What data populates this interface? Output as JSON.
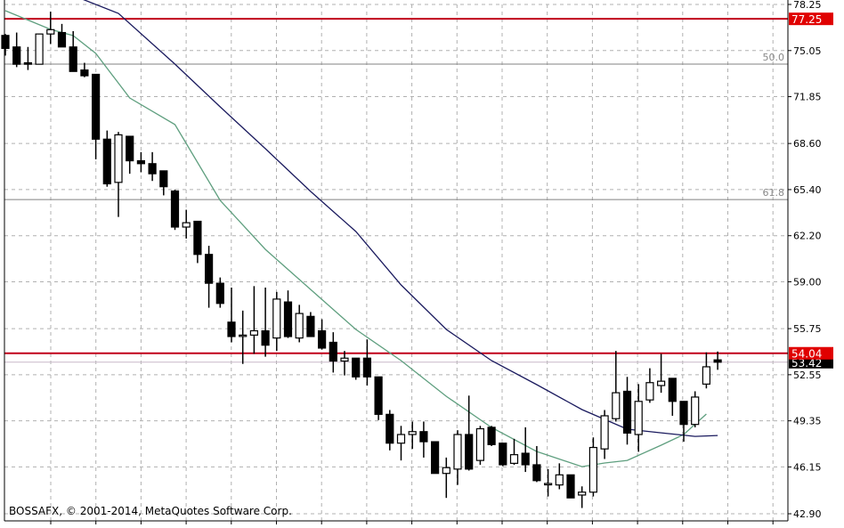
{
  "chart_data": {
    "type": "candlestick",
    "watermark": "BOSSAFX, © 2001-2014, MetaQuotes Software Corp.",
    "ylim": [
      42.9,
      78.25
    ],
    "y_ticks": [
      "78.25",
      "75.05",
      "71.85",
      "68.60",
      "65.40",
      "62.20",
      "59.00",
      "55.75",
      "52.55",
      "49.35",
      "46.15",
      "42.90"
    ],
    "grid": true,
    "colors": {
      "bull_fill": "#ffffff",
      "bear_fill": "#000000",
      "fast_ma": "#5f9f7f",
      "slow_ma": "#1a1a5e",
      "level_line": "#c0001a",
      "fibo_line": "#808080"
    },
    "horizontal_levels": [
      {
        "value": 77.25,
        "label": "77.25",
        "style": "red"
      },
      {
        "value": 54.04,
        "label": "54.04",
        "style": "red"
      }
    ],
    "fibo_levels": [
      {
        "value": 74.11,
        "label": "50.0"
      },
      {
        "value": 64.71,
        "label": "61.8"
      }
    ],
    "current_price": {
      "value": 53.42,
      "label": "53.42"
    },
    "candles": [
      [
        76.1,
        76.2,
        74.7,
        75.2
      ],
      [
        75.3,
        76.3,
        73.9,
        74.1
      ],
      [
        74.2,
        75.3,
        73.7,
        74.1
      ],
      [
        74.1,
        76.2,
        74.1,
        76.2
      ],
      [
        76.2,
        77.75,
        75.5,
        76.5
      ],
      [
        76.3,
        76.9,
        75.3,
        75.3
      ],
      [
        75.3,
        76.4,
        73.6,
        73.6
      ],
      [
        73.7,
        74.2,
        73.2,
        73.3
      ],
      [
        73.4,
        73.4,
        67.5,
        68.9
      ],
      [
        68.9,
        69.5,
        65.6,
        65.8
      ],
      [
        65.9,
        69.4,
        63.5,
        69.2
      ],
      [
        69.1,
        69.1,
        66.5,
        67.4
      ],
      [
        67.4,
        68.0,
        66.6,
        67.2
      ],
      [
        67.2,
        68.0,
        66.0,
        66.5
      ],
      [
        66.7,
        66.7,
        65.0,
        65.6
      ],
      [
        65.3,
        65.4,
        62.6,
        62.8
      ],
      [
        62.8,
        64.0,
        62.0,
        63.1
      ],
      [
        63.2,
        63.2,
        60.3,
        60.9
      ],
      [
        60.9,
        61.5,
        57.2,
        58.9
      ],
      [
        58.9,
        59.3,
        57.2,
        57.5
      ],
      [
        56.2,
        58.6,
        54.8,
        55.2
      ],
      [
        55.3,
        57.0,
        53.3,
        55.3
      ],
      [
        55.3,
        58.7,
        54.0,
        55.6
      ],
      [
        55.6,
        58.6,
        53.8,
        54.6
      ],
      [
        55.1,
        58.3,
        54.2,
        57.8
      ],
      [
        57.6,
        58.4,
        55.1,
        55.2
      ],
      [
        55.1,
        57.4,
        54.8,
        56.8
      ],
      [
        56.6,
        56.9,
        55.2,
        55.2
      ],
      [
        55.6,
        56.4,
        54.3,
        54.4
      ],
      [
        54.8,
        55.5,
        52.7,
        53.5
      ],
      [
        53.5,
        54.2,
        52.5,
        53.7
      ],
      [
        53.7,
        53.7,
        52.2,
        52.4
      ],
      [
        53.7,
        55.0,
        51.8,
        52.4
      ],
      [
        52.4,
        52.4,
        49.4,
        49.8
      ],
      [
        49.8,
        50.1,
        47.3,
        47.8
      ],
      [
        47.8,
        49.0,
        46.6,
        48.4
      ],
      [
        48.4,
        49.3,
        47.4,
        48.6
      ],
      [
        48.6,
        49.3,
        46.8,
        47.9
      ],
      [
        47.9,
        47.9,
        45.7,
        45.7
      ],
      [
        45.7,
        46.8,
        44.0,
        46.1
      ],
      [
        46.0,
        48.7,
        44.9,
        48.4
      ],
      [
        48.4,
        51.1,
        45.9,
        46.0
      ],
      [
        46.6,
        49.0,
        46.3,
        48.8
      ],
      [
        48.9,
        49.0,
        47.6,
        47.7
      ],
      [
        47.8,
        47.8,
        46.2,
        46.3
      ],
      [
        46.4,
        48.1,
        46.3,
        47.0
      ],
      [
        47.1,
        48.9,
        45.8,
        46.3
      ],
      [
        46.3,
        47.6,
        45.1,
        45.2
      ],
      [
        45.0,
        46.0,
        44.1,
        45.0
      ],
      [
        44.9,
        46.4,
        44.6,
        45.6
      ],
      [
        45.6,
        45.6,
        44.0,
        44.0
      ],
      [
        44.2,
        44.8,
        43.3,
        44.4
      ],
      [
        44.4,
        48.2,
        44.1,
        47.5
      ],
      [
        47.4,
        50.1,
        46.7,
        49.7
      ],
      [
        49.5,
        54.2,
        49.3,
        51.3
      ],
      [
        51.4,
        52.4,
        47.7,
        48.5
      ],
      [
        48.4,
        51.9,
        47.2,
        50.7
      ],
      [
        50.8,
        53.0,
        50.6,
        52.0
      ],
      [
        51.8,
        54.0,
        51.3,
        52.1
      ],
      [
        52.3,
        52.3,
        49.7,
        50.7
      ],
      [
        50.7,
        50.7,
        47.9,
        49.1
      ],
      [
        49.1,
        51.4,
        48.9,
        51.0
      ],
      [
        51.9,
        54.1,
        51.6,
        53.1
      ],
      [
        53.58,
        54.16,
        52.89,
        53.42
      ]
    ],
    "fast_ma": [
      [
        0,
        77.82
      ],
      [
        4,
        76.52
      ],
      [
        6,
        76.09
      ],
      [
        8,
        74.85
      ],
      [
        11,
        71.76
      ],
      [
        15,
        69.91
      ],
      [
        19,
        64.65
      ],
      [
        23,
        61.25
      ],
      [
        27,
        58.47
      ],
      [
        31,
        55.69
      ],
      [
        35,
        53.53
      ],
      [
        39,
        51.05
      ],
      [
        43,
        48.89
      ],
      [
        47,
        47.22
      ],
      [
        51,
        46.17
      ],
      [
        53,
        46.42
      ],
      [
        55,
        46.6
      ],
      [
        58,
        47.66
      ],
      [
        60,
        48.4
      ],
      [
        62,
        49.82
      ]
    ],
    "slow_ma": [
      [
        6,
        78.87
      ],
      [
        10,
        77.63
      ],
      [
        15,
        74.11
      ],
      [
        19,
        71.14
      ],
      [
        23,
        68.24
      ],
      [
        27,
        65.27
      ],
      [
        31,
        62.49
      ],
      [
        35,
        58.78
      ],
      [
        39,
        55.69
      ],
      [
        43,
        53.53
      ],
      [
        47,
        51.86
      ],
      [
        51,
        50.13
      ],
      [
        55,
        48.77
      ],
      [
        58,
        48.52
      ],
      [
        61,
        48.27
      ],
      [
        63,
        48.33
      ]
    ]
  }
}
